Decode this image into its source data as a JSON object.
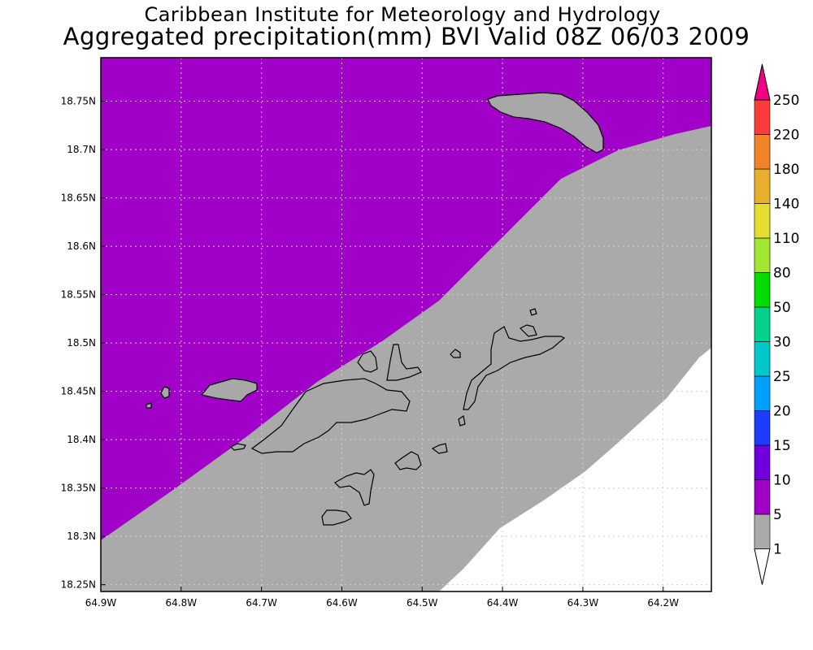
{
  "title": {
    "line1": "Caribbean Institute for Meteorology and Hydrology",
    "line2": "Aggregated precipitation(mm) BVI Valid 08Z 06/03 2009"
  },
  "map": {
    "lon_range": [
      -64.9,
      -64.14
    ],
    "lat_range": [
      18.243,
      18.795
    ],
    "x_ticks": [
      "64.9W",
      "64.8W",
      "64.7W",
      "64.6W",
      "64.5W",
      "64.4W",
      "64.3W",
      "64.2W"
    ],
    "x_tick_values": [
      -64.9,
      -64.8,
      -64.7,
      -64.6,
      -64.5,
      -64.4,
      -64.3,
      -64.2
    ],
    "y_ticks": [
      "18.75N",
      "18.7N",
      "18.65N",
      "18.6N",
      "18.55N",
      "18.5N",
      "18.45N",
      "18.4N",
      "18.35N",
      "18.3N",
      "18.25N"
    ],
    "y_tick_values": [
      18.75,
      18.7,
      18.65,
      18.6,
      18.55,
      18.5,
      18.45,
      18.4,
      18.35,
      18.3,
      18.25
    ],
    "grid": "dotted",
    "fill_colors": {
      "class_5_10": "#a000c8",
      "class_1_5": "#aaaaaa",
      "below_1": "#ffffff"
    }
  },
  "colorbar": {
    "labels": [
      "1",
      "5",
      "10",
      "15",
      "20",
      "25",
      "30",
      "50",
      "80",
      "110",
      "140",
      "180",
      "220",
      "250"
    ],
    "colors": [
      "#aaaaaa",
      "#a000c8",
      "#6e00dc",
      "#1e3cff",
      "#00a0ff",
      "#00c8c8",
      "#00d28c",
      "#00dc00",
      "#a0e632",
      "#e6dc32",
      "#e6af2d",
      "#f08228",
      "#fa3c3c",
      "#f00082"
    ]
  }
}
